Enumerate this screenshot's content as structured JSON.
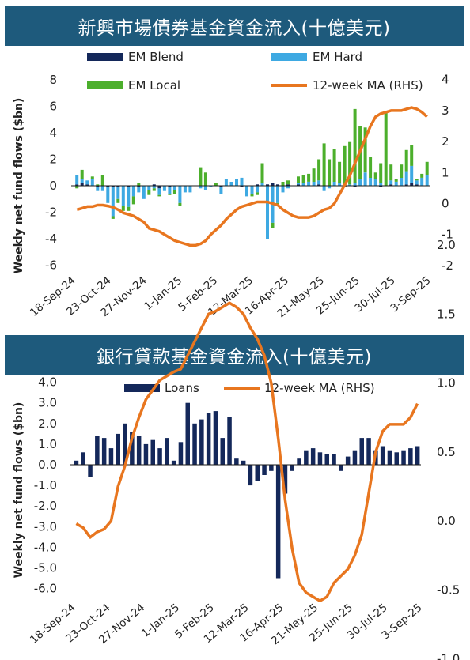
{
  "charts": [
    {
      "title": "新興市場債券基金資金流入(十億美元)",
      "chart_data": {
        "type": "bar",
        "stacked": true,
        "ylabel": "Weekly net fund flows ($bn)",
        "ylim": [
          -6,
          8
        ],
        "yticks": [
          -6,
          -4,
          -2,
          0,
          2,
          4,
          6,
          8
        ],
        "y2lim": [
          -2,
          4
        ],
        "y2ticks": [
          -2,
          -1,
          0,
          1,
          2,
          3,
          4
        ],
        "xtick_labels": [
          "18-Sep-24",
          "23-Oct-24",
          "27-Nov-24",
          "1-Jan-25",
          "5-Feb-25",
          "12-Mar-25",
          "16-Apr-25",
          "21-May-25",
          "25-Jun-25",
          "30-Jul-25",
          "3-Sep-25"
        ],
        "series": [
          {
            "name": "EM Blend",
            "color": "#14285a",
            "values": [
              0.1,
              0.2,
              0.1,
              0.0,
              -0.1,
              0.0,
              -0.1,
              -0.1,
              -0.1,
              0.0,
              -0.1,
              0.0,
              -0.1,
              0.0,
              0.0,
              0.1,
              -0.2,
              0.0,
              -0.1,
              0.0,
              0.0,
              0.0,
              0.0,
              0.0,
              0.0,
              0.0,
              0.0,
              0.0,
              -0.1,
              0.0,
              0.0,
              0.0,
              -0.1,
              0.0,
              0.0,
              0.1,
              0.0,
              0.1,
              0.2,
              0.1,
              0.0,
              0.1,
              0.0,
              0.1,
              0.0,
              0.0,
              0.0,
              0.1,
              0.0,
              0.0,
              0.0,
              0.0,
              -0.1,
              0.0,
              -0.1,
              0.0,
              0.0,
              0.0,
              0.0,
              -0.1,
              0.0,
              0.1,
              0.0,
              0.0,
              0.1,
              0.2,
              0.1,
              0.0,
              0.0
            ]
          },
          {
            "name": "EM Hard",
            "color": "#3ea9e2",
            "values": [
              0.7,
              0.3,
              0.3,
              0.5,
              -0.3,
              -0.4,
              -1.2,
              -2.2,
              -0.9,
              -1.5,
              -1.5,
              -0.8,
              -0.4,
              -1.0,
              -0.3,
              -0.2,
              -0.5,
              -0.4,
              -0.5,
              -0.3,
              -1.3,
              -0.5,
              -0.5,
              0.0,
              -0.2,
              -0.3,
              -0.1,
              0.0,
              -0.5,
              0.5,
              0.3,
              0.5,
              0.6,
              -0.8,
              -0.6,
              -0.5,
              0.2,
              -4.0,
              -2.8,
              -1.3,
              -0.5,
              -0.2,
              0.0,
              0.1,
              0.2,
              0.3,
              0.3,
              0.3,
              -0.4,
              -0.2,
              0.3,
              0.2,
              0.0,
              0.1,
              0.2,
              0.5,
              1.0,
              0.6,
              0.5,
              0.2,
              0.0,
              0.3,
              0.3,
              0.6,
              1.0,
              1.3,
              0.3,
              0.6,
              0.8
            ]
          },
          {
            "name": "EM Local",
            "color": "#4caf2c",
            "values": [
              -0.2,
              0.7,
              0.0,
              0.2,
              0.1,
              0.8,
              0.0,
              -0.2,
              -0.3,
              -0.4,
              -0.3,
              -0.6,
              0.2,
              0.0,
              -0.4,
              -0.2,
              -0.1,
              0.0,
              -0.1,
              -0.3,
              -0.2,
              0.0,
              0.0,
              0.0,
              1.4,
              1.0,
              0.0,
              0.2,
              0.0,
              0.0,
              0.0,
              0.0,
              0.0,
              0.0,
              -0.2,
              -0.2,
              1.5,
              0.0,
              -0.4,
              -0.2,
              0.3,
              0.3,
              0.0,
              0.5,
              0.6,
              0.6,
              1.0,
              1.6,
              3.2,
              2.0,
              2.5,
              1.6,
              3.0,
              3.2,
              5.6,
              4.0,
              3.4,
              1.6,
              0.5,
              1.5,
              5.5,
              1.2,
              0.2,
              1.0,
              1.6,
              1.6,
              0.1,
              0.3,
              1.0
            ]
          },
          {
            "name": "12-week MA (RHS)",
            "color": "#e8761f",
            "values": [
              -0.2,
              -0.15,
              -0.1,
              -0.1,
              -0.05,
              -0.05,
              -0.08,
              -0.12,
              -0.2,
              -0.3,
              -0.35,
              -0.4,
              -0.5,
              -0.6,
              -0.8,
              -0.85,
              -0.9,
              -1.0,
              -1.1,
              -1.2,
              -1.25,
              -1.3,
              -1.35,
              -1.35,
              -1.3,
              -1.2,
              -1.0,
              -0.85,
              -0.7,
              -0.5,
              -0.35,
              -0.2,
              -0.1,
              -0.05,
              0.0,
              0.05,
              0.05,
              0.05,
              0.0,
              -0.05,
              -0.2,
              -0.3,
              -0.4,
              -0.45,
              -0.45,
              -0.45,
              -0.4,
              -0.3,
              -0.2,
              -0.15,
              0.0,
              0.3,
              0.6,
              0.9,
              1.3,
              1.7,
              2.1,
              2.5,
              2.8,
              2.9,
              2.95,
              3.0,
              3.0,
              3.0,
              3.05,
              3.1,
              3.05,
              2.95,
              2.8
            ]
          }
        ]
      }
    },
    {
      "title": "銀行貸款基金資金流入(十億美元)",
      "chart_data": {
        "type": "bar",
        "ylabel": "Weekly net fund flows ($bn)",
        "ylim": [
          -6,
          4
        ],
        "yticks": [
          "4.0",
          "3.0",
          "2.0",
          "1.0",
          "0.0",
          "-1.0",
          "-2.0",
          "-3.0",
          "-4.0",
          "-5.0",
          "-6.0"
        ],
        "y2lim": [
          -1,
          2
        ],
        "y2ticks": [
          "2.0",
          "1.5",
          "1.0",
          "0.5",
          "0.0",
          "-0.5",
          "-1.0"
        ],
        "xtick_labels": [
          "18-Sep-24",
          "23-Oct-24",
          "27-Nov-24",
          "1-Jan-25",
          "5-Feb-25",
          "12-Mar-25",
          "16-Apr-25",
          "21-May-25",
          "25-Jun-25",
          "30-Jul-25",
          "3-Sep-25"
        ],
        "series": [
          {
            "name": "Loans",
            "color": "#14285a",
            "values": [
              0.2,
              0.6,
              -0.6,
              1.4,
              1.3,
              0.8,
              1.5,
              2.0,
              1.6,
              1.4,
              1.0,
              1.2,
              0.8,
              1.3,
              0.2,
              1.1,
              3.0,
              2.0,
              2.2,
              2.5,
              2.6,
              1.3,
              2.3,
              0.3,
              0.2,
              -1.0,
              -0.8,
              -0.5,
              -0.3,
              -5.5,
              -1.4,
              -0.3,
              0.3,
              0.7,
              0.8,
              0.6,
              0.5,
              0.5,
              -0.3,
              0.4,
              0.7,
              1.3,
              1.3,
              0.7,
              0.9,
              0.7,
              0.6,
              0.7,
              0.8,
              0.9
            ]
          },
          {
            "name": "12-week MA (RHS)",
            "color": "#e8761f",
            "values": [
              -0.02,
              -0.05,
              -0.12,
              -0.08,
              -0.06,
              0.0,
              0.25,
              0.4,
              0.6,
              0.75,
              0.88,
              0.95,
              1.02,
              1.05,
              1.08,
              1.1,
              1.2,
              1.3,
              1.4,
              1.5,
              1.52,
              1.55,
              1.58,
              1.55,
              1.5,
              1.4,
              1.32,
              1.2,
              1.0,
              0.6,
              0.15,
              -0.2,
              -0.45,
              -0.52,
              -0.55,
              -0.58,
              -0.55,
              -0.45,
              -0.4,
              -0.35,
              -0.25,
              -0.1,
              0.2,
              0.5,
              0.65,
              0.7,
              0.7,
              0.7,
              0.75,
              0.85
            ]
          }
        ]
      }
    }
  ]
}
